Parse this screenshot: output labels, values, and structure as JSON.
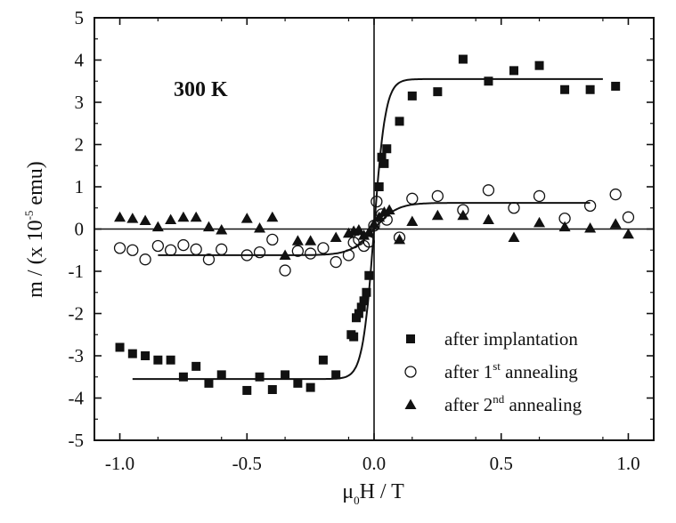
{
  "chart_data": {
    "type": "scatter",
    "title": "",
    "annotation": "300 K",
    "xlabel": {
      "mu": "μ",
      "sub": "0",
      "rest": "H / T"
    },
    "ylabel": {
      "main": "m / (x 10",
      "sup": "-5",
      "end": " emu)"
    },
    "xlim": [
      -1.1,
      1.1
    ],
    "ylim": [
      -5,
      5
    ],
    "x_ticks": [
      -1.0,
      -0.5,
      0.0,
      0.5,
      1.0
    ],
    "x_tick_labels": [
      "-1.0",
      "-0.5",
      "0.0",
      "0.5",
      "1.0"
    ],
    "y_ticks": [
      -5,
      -4,
      -3,
      -2,
      -1,
      0,
      1,
      2,
      3,
      4,
      5
    ],
    "y_tick_labels": [
      "-5",
      "-4",
      "-3",
      "-2",
      "-1",
      "0",
      "1",
      "2",
      "3",
      "4",
      "5"
    ],
    "zero_lines": true,
    "legend_position": "bottom-right",
    "series": [
      {
        "name": "after implantation",
        "legend": {
          "main": "after implantation",
          "sup": "",
          "end": ""
        },
        "marker": "square-filled",
        "points": [
          [
            -1.0,
            -2.8
          ],
          [
            -0.95,
            -2.95
          ],
          [
            -0.9,
            -3.0
          ],
          [
            -0.85,
            -3.1
          ],
          [
            -0.8,
            -3.1
          ],
          [
            -0.75,
            -3.5
          ],
          [
            -0.7,
            -3.25
          ],
          [
            -0.65,
            -3.65
          ],
          [
            -0.6,
            -3.45
          ],
          [
            -0.5,
            -3.82
          ],
          [
            -0.45,
            -3.5
          ],
          [
            -0.4,
            -3.8
          ],
          [
            -0.35,
            -3.45
          ],
          [
            -0.3,
            -3.65
          ],
          [
            -0.25,
            -3.75
          ],
          [
            -0.2,
            -3.1
          ],
          [
            -0.15,
            -3.45
          ],
          [
            -0.09,
            -2.5
          ],
          [
            -0.08,
            -2.55
          ],
          [
            -0.07,
            -2.1
          ],
          [
            -0.06,
            -2.0
          ],
          [
            -0.05,
            -1.85
          ],
          [
            -0.04,
            -1.7
          ],
          [
            -0.03,
            -1.5
          ],
          [
            -0.02,
            -1.1
          ],
          [
            0.02,
            1.0
          ],
          [
            0.03,
            1.7
          ],
          [
            0.04,
            1.55
          ],
          [
            0.05,
            1.9
          ],
          [
            0.1,
            2.55
          ],
          [
            0.15,
            3.15
          ],
          [
            0.25,
            3.25
          ],
          [
            0.35,
            4.02
          ],
          [
            0.45,
            3.5
          ],
          [
            0.55,
            3.75
          ],
          [
            0.65,
            3.87
          ],
          [
            0.75,
            3.3
          ],
          [
            0.85,
            3.3
          ],
          [
            0.95,
            3.38
          ]
        ]
      },
      {
        "name": "after 1st annealing",
        "legend": {
          "main": "after 1",
          "sup": "st",
          "end": " annealing"
        },
        "marker": "circle-open",
        "points": [
          [
            -1.0,
            -0.45
          ],
          [
            -0.95,
            -0.5
          ],
          [
            -0.9,
            -0.72
          ],
          [
            -0.85,
            -0.4
          ],
          [
            -0.8,
            -0.5
          ],
          [
            -0.75,
            -0.38
          ],
          [
            -0.7,
            -0.48
          ],
          [
            -0.65,
            -0.72
          ],
          [
            -0.6,
            -0.48
          ],
          [
            -0.5,
            -0.62
          ],
          [
            -0.45,
            -0.55
          ],
          [
            -0.4,
            -0.25
          ],
          [
            -0.35,
            -0.98
          ],
          [
            -0.3,
            -0.52
          ],
          [
            -0.25,
            -0.58
          ],
          [
            -0.2,
            -0.45
          ],
          [
            -0.15,
            -0.78
          ],
          [
            -0.1,
            -0.62
          ],
          [
            -0.08,
            -0.32
          ],
          [
            -0.06,
            -0.25
          ],
          [
            -0.04,
            -0.4
          ],
          [
            -0.02,
            -0.3
          ],
          [
            0.0,
            0.08
          ],
          [
            0.01,
            0.65
          ],
          [
            0.03,
            0.35
          ],
          [
            0.05,
            0.22
          ],
          [
            0.1,
            -0.2
          ],
          [
            0.15,
            0.72
          ],
          [
            0.25,
            0.78
          ],
          [
            0.35,
            0.45
          ],
          [
            0.45,
            0.92
          ],
          [
            0.55,
            0.5
          ],
          [
            0.65,
            0.78
          ],
          [
            0.75,
            0.25
          ],
          [
            0.85,
            0.55
          ],
          [
            0.95,
            0.82
          ],
          [
            1.0,
            0.28
          ]
        ]
      },
      {
        "name": "after 2nd annealing",
        "legend": {
          "main": "after 2",
          "sup": "nd",
          "end": " annealing"
        },
        "marker": "triangle-filled",
        "points": [
          [
            -1.0,
            0.28
          ],
          [
            -0.95,
            0.25
          ],
          [
            -0.9,
            0.2
          ],
          [
            -0.85,
            0.05
          ],
          [
            -0.8,
            0.22
          ],
          [
            -0.75,
            0.28
          ],
          [
            -0.7,
            0.28
          ],
          [
            -0.65,
            0.05
          ],
          [
            -0.6,
            -0.02
          ],
          [
            -0.5,
            0.25
          ],
          [
            -0.45,
            0.02
          ],
          [
            -0.4,
            0.28
          ],
          [
            -0.35,
            -0.62
          ],
          [
            -0.3,
            -0.28
          ],
          [
            -0.25,
            -0.28
          ],
          [
            -0.15,
            -0.2
          ],
          [
            -0.1,
            -0.1
          ],
          [
            -0.08,
            -0.05
          ],
          [
            -0.06,
            -0.02
          ],
          [
            -0.04,
            -0.15
          ],
          [
            -0.02,
            -0.08
          ],
          [
            0.0,
            0.12
          ],
          [
            0.02,
            0.28
          ],
          [
            0.04,
            0.4
          ],
          [
            0.06,
            0.45
          ],
          [
            0.1,
            -0.25
          ],
          [
            0.15,
            0.18
          ],
          [
            0.25,
            0.32
          ],
          [
            0.35,
            0.32
          ],
          [
            0.45,
            0.22
          ],
          [
            0.55,
            -0.2
          ],
          [
            0.65,
            0.15
          ],
          [
            0.75,
            0.05
          ],
          [
            0.85,
            0.02
          ],
          [
            0.95,
            0.12
          ],
          [
            1.0,
            -0.12
          ]
        ]
      }
    ],
    "fit_curves": [
      {
        "name": "fit-implantation",
        "x_range": [
          -0.95,
          0.9
        ],
        "saturation": 3.55,
        "width": 0.045
      },
      {
        "name": "fit-1st-annealing",
        "x_range": [
          -0.85,
          0.85
        ],
        "saturation": 0.62,
        "width": 0.09
      }
    ]
  }
}
